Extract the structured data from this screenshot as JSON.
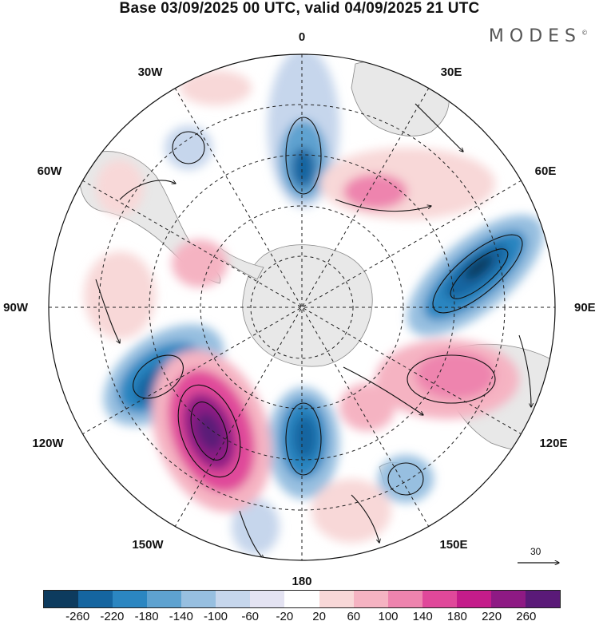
{
  "title": "Base 03/09/2025 00 UTC, valid 04/09/2025 21 UTC",
  "brand": "MODES",
  "brand_mark": "©",
  "longitude_labels": {
    "n0": "0",
    "n30e": "30E",
    "n60e": "60E",
    "n90e": "90E",
    "n120e": "120E",
    "n150e": "150E",
    "n180": "180",
    "n150w": "150W",
    "n120w": "120W",
    "n90w": "90W",
    "n60w": "60W",
    "n30w": "30W"
  },
  "reference_vector": {
    "value": "30"
  },
  "colorbar": {
    "colors": [
      "#0d3b5e",
      "#1565a0",
      "#2b86c1",
      "#5ea2d0",
      "#97bfe0",
      "#c6d6ec",
      "#e4e3f2",
      "#ffffff",
      "#f8d8d8",
      "#f5b3c2",
      "#ee84ae",
      "#e0489a",
      "#c41c8a",
      "#8e1a84",
      "#5a1a78"
    ],
    "ticks": [
      "-260",
      "-220",
      "-180",
      "-140",
      "-100",
      "-60",
      "-20",
      "20",
      "60",
      "100",
      "140",
      "180",
      "220",
      "260"
    ]
  }
}
